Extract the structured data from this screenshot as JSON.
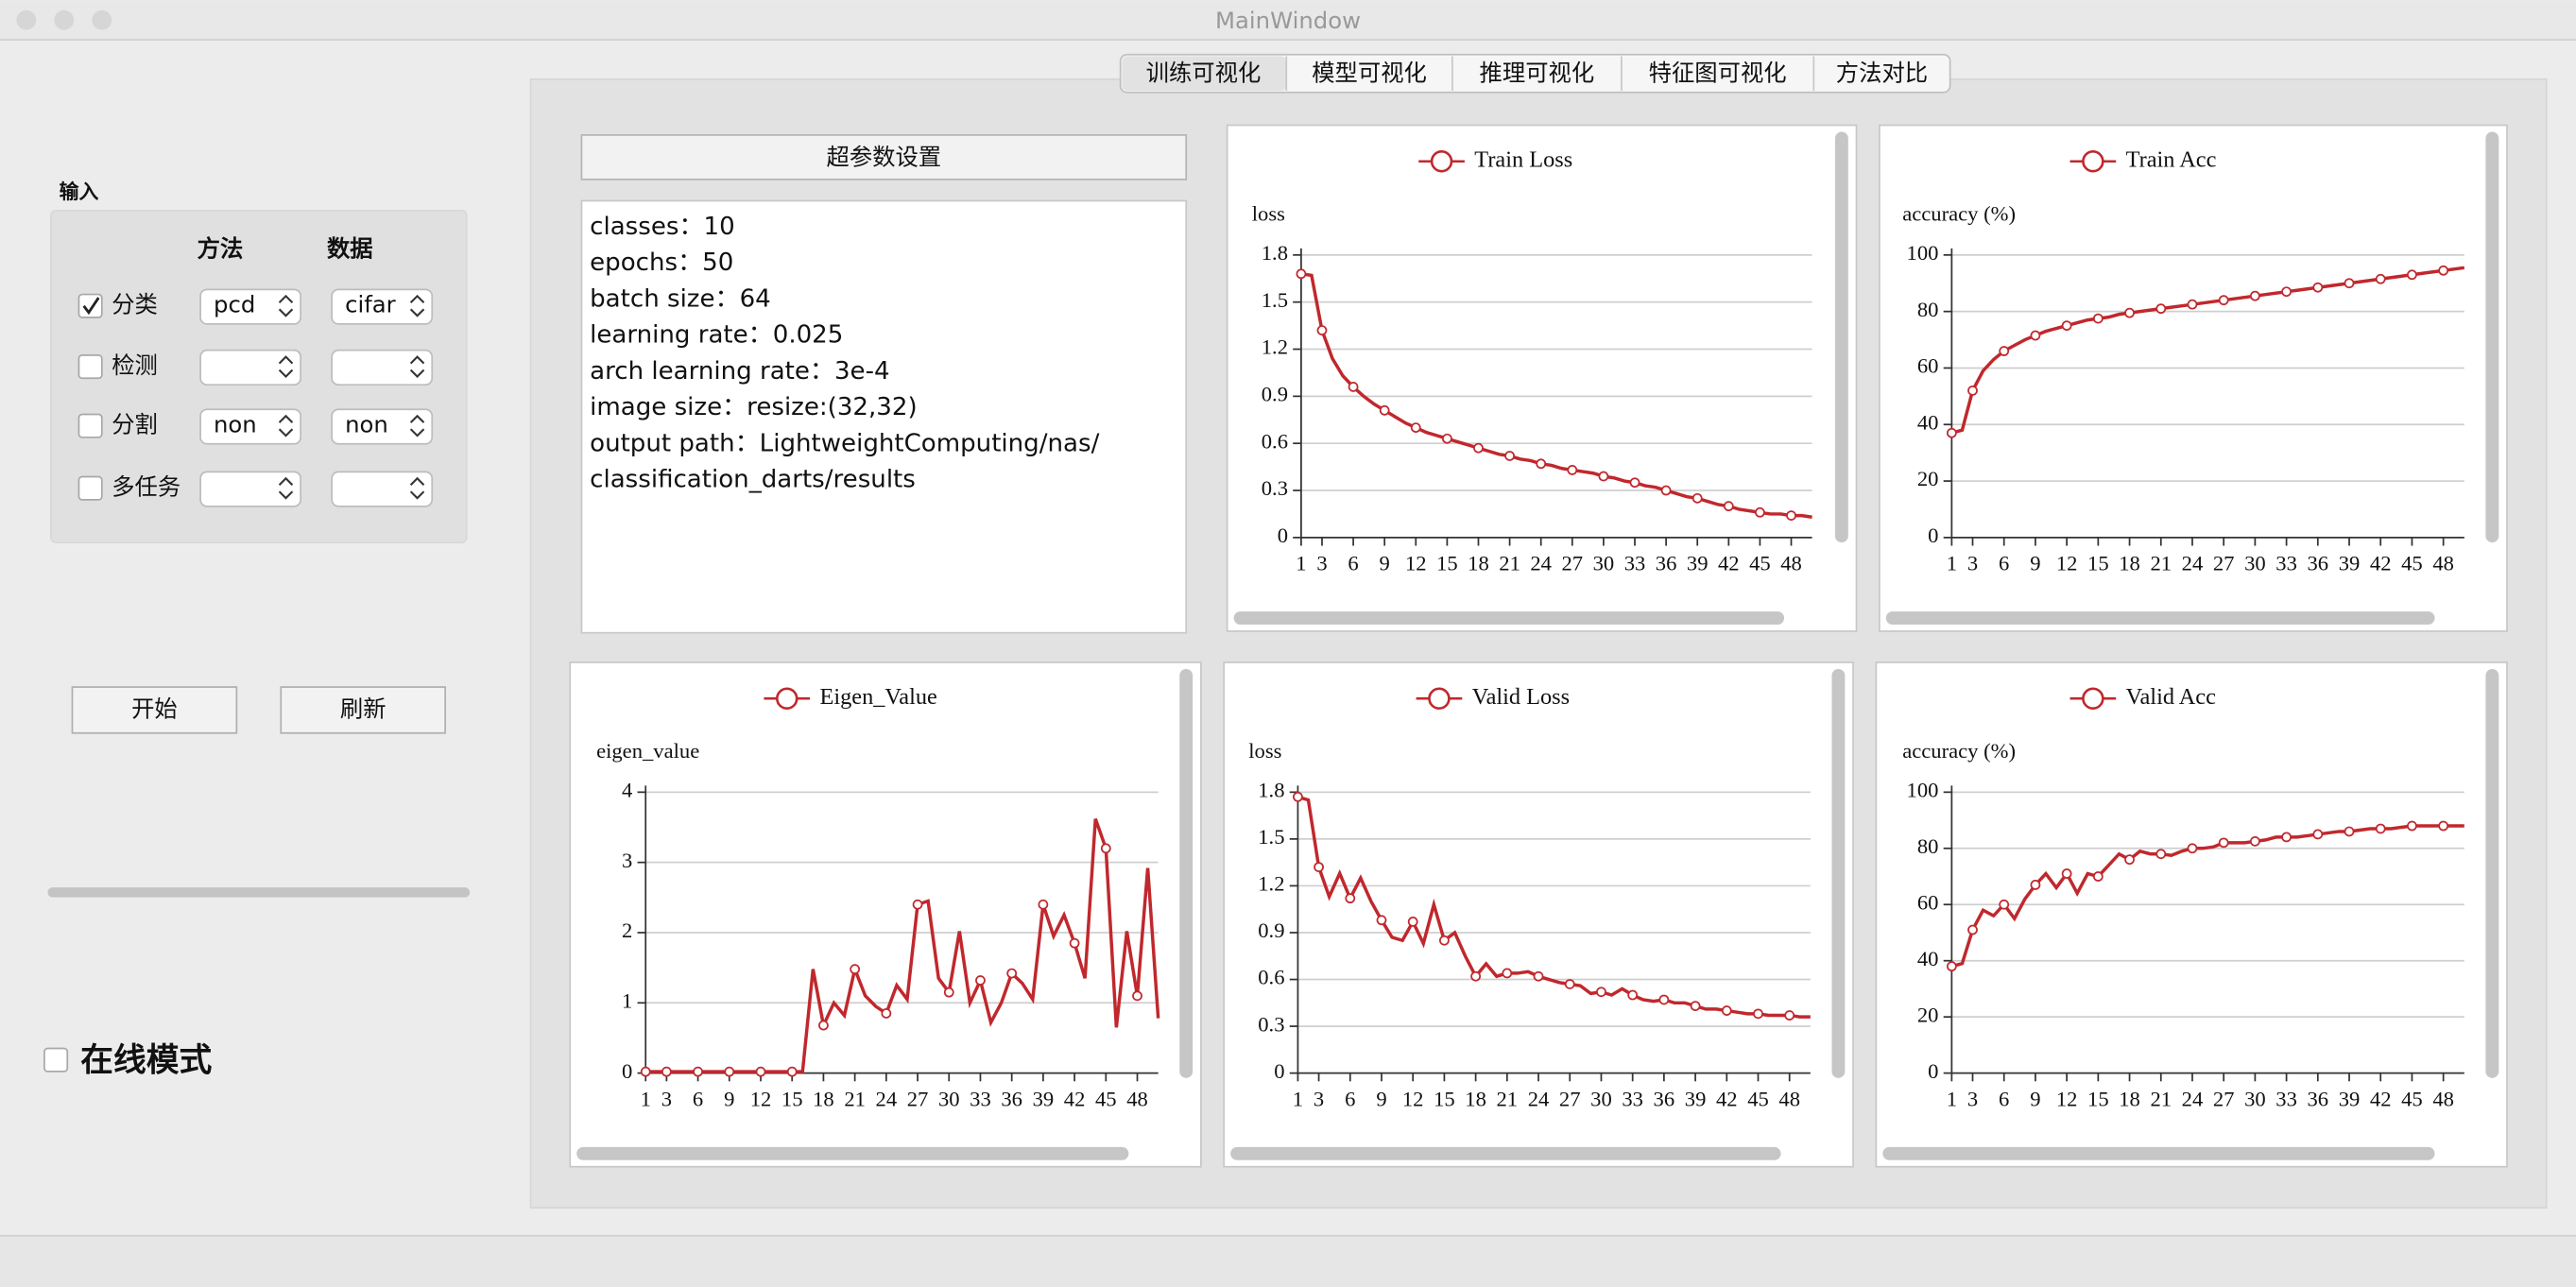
{
  "window_title": "MainWindow",
  "tabs": [
    "训练可视化",
    "模型可视化",
    "推理可视化",
    "特征图可视化",
    "方法对比"
  ],
  "input_panel": {
    "title": "输入",
    "headers": [
      "方法",
      "数据"
    ],
    "rows": [
      {
        "label": "分类",
        "checked": true,
        "method": "pcd",
        "data": "cifar"
      },
      {
        "label": "检测",
        "checked": false,
        "method": "",
        "data": ""
      },
      {
        "label": "分割",
        "checked": false,
        "method": "non",
        "data": "non"
      },
      {
        "label": "多任务",
        "checked": false,
        "method": "",
        "data": ""
      }
    ]
  },
  "buttons": [
    "开始",
    "刷新"
  ],
  "online_mode": {
    "label": "在线模式",
    "checked": false
  },
  "hyperparams": {
    "button": "超参数设置",
    "lines": [
      "classes：10",
      "epochs：50",
      "batch size：64",
      "learning rate：0.025",
      "arch learning rate：3e-4",
      "image size：resize:(32,32)",
      "output path：LightweightComputing/nas/",
      "classification_darts/results"
    ]
  },
  "chart_data": [
    {
      "type": "line",
      "y_label": "loss",
      "x": [
        1,
        2,
        3,
        4,
        5,
        6,
        7,
        8,
        9,
        10,
        11,
        12,
        13,
        14,
        15,
        16,
        17,
        18,
        19,
        20,
        21,
        22,
        23,
        24,
        25,
        26,
        27,
        28,
        29,
        30,
        31,
        32,
        33,
        34,
        35,
        36,
        37,
        38,
        39,
        40,
        41,
        42,
        43,
        44,
        45,
        46,
        47,
        48,
        49,
        50
      ],
      "xlim": [
        1,
        50
      ],
      "xticks": [
        1,
        3,
        6,
        9,
        12,
        15,
        18,
        21,
        24,
        27,
        30,
        33,
        36,
        39,
        42,
        45,
        48
      ],
      "ylim": [
        0,
        1.8
      ],
      "yticks": [
        0,
        0.3,
        0.6,
        0.9,
        1.2,
        1.5,
        1.8
      ],
      "grid": true,
      "series": [
        {
          "name": "Train Loss",
          "color": "#c0282d",
          "values": [
            1.68,
            1.67,
            1.32,
            1.14,
            1.03,
            0.96,
            0.9,
            0.85,
            0.81,
            0.77,
            0.73,
            0.7,
            0.67,
            0.65,
            0.63,
            0.61,
            0.59,
            0.57,
            0.55,
            0.53,
            0.52,
            0.5,
            0.49,
            0.47,
            0.46,
            0.44,
            0.43,
            0.42,
            0.41,
            0.39,
            0.38,
            0.36,
            0.35,
            0.33,
            0.32,
            0.3,
            0.28,
            0.26,
            0.25,
            0.23,
            0.21,
            0.2,
            0.18,
            0.17,
            0.16,
            0.15,
            0.15,
            0.14,
            0.14,
            0.13
          ]
        }
      ]
    },
    {
      "type": "line",
      "y_label": "accuracy (%)",
      "x": [
        1,
        2,
        3,
        4,
        5,
        6,
        7,
        8,
        9,
        10,
        11,
        12,
        13,
        14,
        15,
        16,
        17,
        18,
        19,
        20,
        21,
        22,
        23,
        24,
        25,
        26,
        27,
        28,
        29,
        30,
        31,
        32,
        33,
        34,
        35,
        36,
        37,
        38,
        39,
        40,
        41,
        42,
        43,
        44,
        45,
        46,
        47,
        48,
        49,
        50
      ],
      "xlim": [
        1,
        50
      ],
      "xticks": [
        1,
        3,
        6,
        9,
        12,
        15,
        18,
        21,
        24,
        27,
        30,
        33,
        36,
        39,
        42,
        45,
        48
      ],
      "ylim": [
        0,
        100
      ],
      "yticks": [
        0,
        20,
        40,
        60,
        80,
        100
      ],
      "grid": true,
      "series": [
        {
          "name": "Train Acc",
          "color": "#c0282d",
          "values": [
            37,
            38,
            52,
            59,
            63,
            66,
            68,
            70,
            71.5,
            73,
            74,
            75,
            76,
            77,
            77.5,
            78,
            79,
            79.5,
            80,
            80.5,
            81,
            81.5,
            82,
            82.5,
            83,
            83.5,
            84,
            84.5,
            85,
            85.5,
            86,
            86.5,
            87,
            87.5,
            88,
            88.5,
            89,
            89.5,
            90,
            90.5,
            91,
            91.5,
            92,
            92.5,
            93,
            93.5,
            94,
            94.5,
            95,
            95.5
          ]
        }
      ]
    },
    {
      "type": "line",
      "y_label": "eigen_value",
      "x": [
        1,
        2,
        3,
        4,
        5,
        6,
        7,
        8,
        9,
        10,
        11,
        12,
        13,
        14,
        15,
        16,
        17,
        18,
        19,
        20,
        21,
        22,
        23,
        24,
        25,
        26,
        27,
        28,
        29,
        30,
        31,
        32,
        33,
        34,
        35,
        36,
        37,
        38,
        39,
        40,
        41,
        42,
        43,
        44,
        45,
        46,
        47,
        48,
        49,
        50
      ],
      "xlim": [
        1,
        50
      ],
      "xticks": [
        1,
        3,
        6,
        9,
        12,
        15,
        18,
        21,
        24,
        27,
        30,
        33,
        36,
        39,
        42,
        45,
        48
      ],
      "ylim": [
        0,
        4
      ],
      "yticks": [
        0,
        1,
        2,
        3,
        4
      ],
      "grid": true,
      "series": [
        {
          "name": "Eigen_Value",
          "color": "#c0282d",
          "values": [
            0.02,
            0.02,
            0.02,
            0.02,
            0.02,
            0.02,
            0.02,
            0.02,
            0.02,
            0.02,
            0.02,
            0.02,
            0.02,
            0.02,
            0.02,
            0.02,
            1.48,
            0.68,
            1.0,
            0.82,
            1.48,
            1.1,
            0.95,
            0.85,
            1.25,
            1.05,
            2.4,
            2.45,
            1.35,
            1.15,
            2.02,
            1.0,
            1.32,
            0.72,
            1.0,
            1.42,
            1.28,
            1.05,
            2.4,
            1.95,
            2.25,
            1.85,
            1.35,
            3.62,
            3.2,
            0.65,
            2.02,
            1.1,
            2.92,
            0.78
          ]
        }
      ]
    },
    {
      "type": "line",
      "y_label": "loss",
      "x": [
        1,
        2,
        3,
        4,
        5,
        6,
        7,
        8,
        9,
        10,
        11,
        12,
        13,
        14,
        15,
        16,
        17,
        18,
        19,
        20,
        21,
        22,
        23,
        24,
        25,
        26,
        27,
        28,
        29,
        30,
        31,
        32,
        33,
        34,
        35,
        36,
        37,
        38,
        39,
        40,
        41,
        42,
        43,
        44,
        45,
        46,
        47,
        48,
        49,
        50
      ],
      "xlim": [
        1,
        50
      ],
      "xticks": [
        1,
        3,
        6,
        9,
        12,
        15,
        18,
        21,
        24,
        27,
        30,
        33,
        36,
        39,
        42,
        45,
        48
      ],
      "ylim": [
        0,
        1.8
      ],
      "yticks": [
        0,
        0.3,
        0.6,
        0.9,
        1.2,
        1.5,
        1.8
      ],
      "grid": true,
      "series": [
        {
          "name": "Valid Loss",
          "color": "#c0282d",
          "values": [
            1.77,
            1.75,
            1.32,
            1.13,
            1.28,
            1.12,
            1.25,
            1.1,
            0.98,
            0.87,
            0.85,
            0.97,
            0.83,
            1.08,
            0.85,
            0.9,
            0.75,
            0.62,
            0.7,
            0.62,
            0.64,
            0.64,
            0.65,
            0.62,
            0.6,
            0.58,
            0.57,
            0.56,
            0.51,
            0.52,
            0.5,
            0.54,
            0.5,
            0.47,
            0.46,
            0.47,
            0.45,
            0.45,
            0.43,
            0.41,
            0.41,
            0.4,
            0.39,
            0.38,
            0.38,
            0.37,
            0.37,
            0.37,
            0.36,
            0.36
          ]
        }
      ]
    },
    {
      "type": "line",
      "y_label": "accuracy (%)",
      "x": [
        1,
        2,
        3,
        4,
        5,
        6,
        7,
        8,
        9,
        10,
        11,
        12,
        13,
        14,
        15,
        16,
        17,
        18,
        19,
        20,
        21,
        22,
        23,
        24,
        25,
        26,
        27,
        28,
        29,
        30,
        31,
        32,
        33,
        34,
        35,
        36,
        37,
        38,
        39,
        40,
        41,
        42,
        43,
        44,
        45,
        46,
        47,
        48,
        49,
        50
      ],
      "xlim": [
        1,
        50
      ],
      "xticks": [
        1,
        3,
        6,
        9,
        12,
        15,
        18,
        21,
        24,
        27,
        30,
        33,
        36,
        39,
        42,
        45,
        48
      ],
      "ylim": [
        0,
        100
      ],
      "yticks": [
        0,
        20,
        40,
        60,
        80,
        100
      ],
      "grid": true,
      "series": [
        {
          "name": "Valid Acc",
          "color": "#c0282d",
          "values": [
            38,
            39,
            51,
            58,
            56,
            60,
            55,
            62,
            67,
            71,
            66,
            71,
            64,
            71,
            70,
            74,
            78,
            76,
            79,
            78,
            78,
            77.5,
            79,
            80,
            80,
            80.5,
            82,
            82,
            82,
            82.5,
            83,
            84,
            84,
            84,
            84.5,
            85,
            85.5,
            86,
            86,
            86.5,
            87,
            87,
            87,
            87.5,
            88,
            88,
            88,
            88,
            88,
            88
          ]
        }
      ]
    }
  ]
}
